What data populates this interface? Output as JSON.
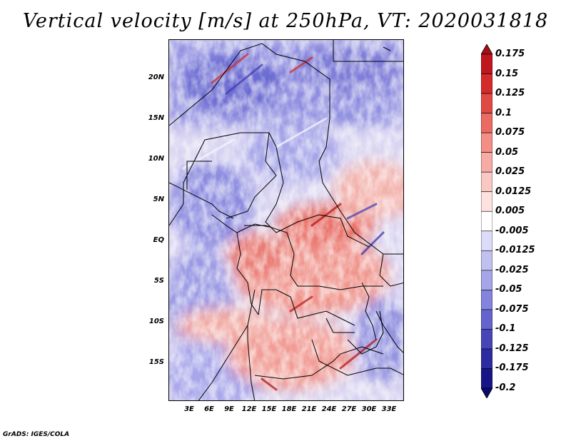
{
  "title": "Vertical velocity [m/s] at 250hPa, VT: 2020031818",
  "footer": "GrADS: IGES/COLA",
  "lat_labels": [
    "20N",
    "15N",
    "10N",
    "5N",
    "EQ",
    "5S",
    "10S",
    "15S"
  ],
  "lon_labels": [
    "3E",
    "6E",
    "9E",
    "12E",
    "15E",
    "18E",
    "21E",
    "24E",
    "27E",
    "30E",
    "33E"
  ],
  "colorbar": {
    "levels": [
      "0.175",
      "0.15",
      "0.125",
      "0.1",
      "0.075",
      "0.05",
      "0.025",
      "0.0125",
      "0.005",
      "-0.005",
      "-0.0125",
      "-0.025",
      "-0.05",
      "-0.075",
      "-0.1",
      "-0.125",
      "-0.175",
      "-0.2"
    ],
    "colors": [
      "#a50f15",
      "#c0171f",
      "#d42a2a",
      "#e04a44",
      "#eb6a62",
      "#f28e86",
      "#f6aba4",
      "#fac8c2",
      "#fde2de",
      "#ffffff",
      "#dcdcf8",
      "#c1c1f0",
      "#a5a5e8",
      "#8484dc",
      "#6464cc",
      "#4646b6",
      "#2c2ca0",
      "#161686",
      "#0a0a6e"
    ]
  }
}
